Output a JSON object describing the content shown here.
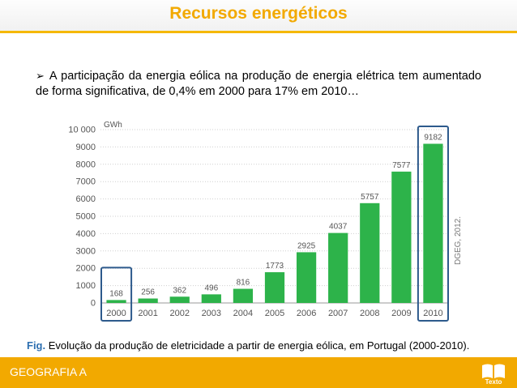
{
  "header": {
    "title": "Recursos energéticos"
  },
  "intro": {
    "text": "A participação da energia eólica na produção de energia elétrica tem aumentado de forma significativa, de 0,4% em 2000 para 17% em 2010…"
  },
  "chart_data": {
    "type": "bar",
    "ylabel": "GWh",
    "categories": [
      "2000",
      "2001",
      "2002",
      "2003",
      "2004",
      "2005",
      "2006",
      "2007",
      "2008",
      "2009",
      "2010"
    ],
    "values": [
      168,
      256,
      362,
      496,
      816,
      1773,
      2925,
      4037,
      5757,
      7577,
      9182
    ],
    "data_labels": [
      "168",
      "256",
      "362",
      "496",
      "816",
      "1773",
      "2925",
      "4037",
      "5757",
      "7577",
      "9182"
    ],
    "ylim": [
      0,
      10000
    ],
    "yticks": [
      0,
      1000,
      2000,
      3000,
      4000,
      5000,
      6000,
      7000,
      8000,
      9000,
      10000
    ],
    "ytick_labels": [
      "0",
      "1000",
      "2000",
      "3000",
      "4000",
      "5000",
      "6000",
      "7000",
      "8000",
      "9000",
      "10 000"
    ],
    "highlighted_categories": [
      "2000",
      "2010"
    ],
    "source": "DGEG, 2012.",
    "grid": true,
    "bar_color": "#2db34a",
    "highlight_color": "#2d5a8c"
  },
  "caption": {
    "prefix": "Fig.",
    "text": " Evolução da produção de eletricidade a partir de energia eólica, em Portugal (2000-2010)."
  },
  "footer": {
    "label": "GEOGRAFIA A",
    "logo_text": "Texto"
  },
  "colors": {
    "accent": "#f2a900",
    "caption_prefix": "#2d6fb0"
  }
}
